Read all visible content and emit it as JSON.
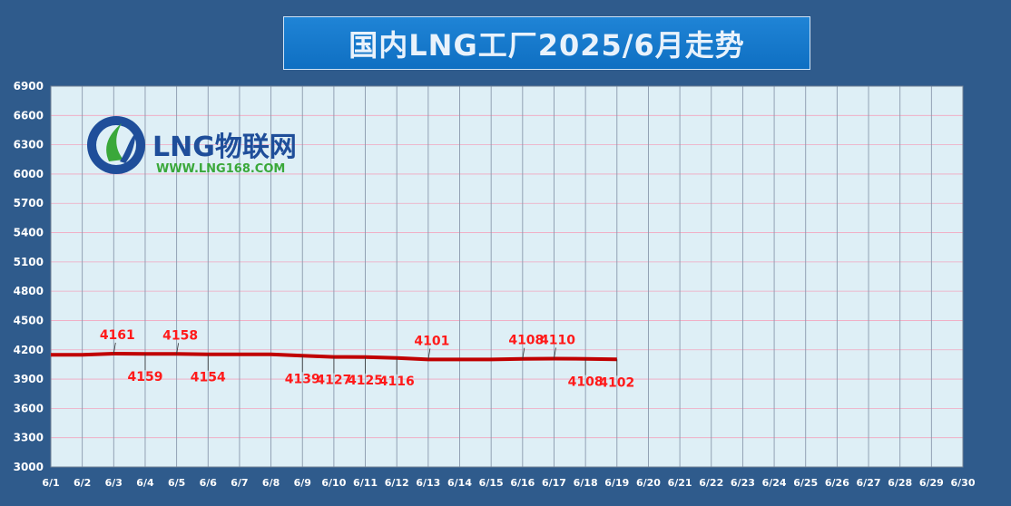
{
  "chart_data": {
    "type": "line",
    "title": "国内LNG工厂2025/6月走势",
    "categories": [
      "6/1",
      "6/2",
      "6/3",
      "6/4",
      "6/5",
      "6/6",
      "6/7",
      "6/8",
      "6/9",
      "6/10",
      "6/11",
      "6/12",
      "6/13",
      "6/14",
      "6/15",
      "6/16",
      "6/17",
      "6/18",
      "6/19",
      "6/20",
      "6/21",
      "6/22",
      "6/23",
      "6/24",
      "6/25",
      "6/26",
      "6/27",
      "6/28",
      "6/29",
      "6/30"
    ],
    "values": [
      4150,
      4150,
      4161,
      4159,
      4158,
      4154,
      4154,
      4154,
      4139,
      4127,
      4125,
      4116,
      4101,
      4101,
      4101,
      4108,
      4110,
      4108,
      4102,
      null,
      null,
      null,
      null,
      null,
      null,
      null,
      null,
      null,
      null,
      null
    ],
    "yticks": [
      3000,
      3300,
      3600,
      3900,
      4200,
      4500,
      4800,
      5100,
      5400,
      5700,
      6000,
      6300,
      6600,
      6900
    ],
    "ylim": [
      3000,
      6900
    ],
    "grid": true,
    "line_color": "#c00000",
    "label_color": "#ff1a1a",
    "plot_bg": "#deeff6",
    "data_labels": [
      {
        "index": 2,
        "text": "4161",
        "side": "above"
      },
      {
        "index": 3,
        "text": "4159",
        "side": "below"
      },
      {
        "index": 4,
        "text": "4158",
        "side": "above"
      },
      {
        "index": 5,
        "text": "4154",
        "side": "below"
      },
      {
        "index": 8,
        "text": "4139",
        "side": "below"
      },
      {
        "index": 9,
        "text": "4127",
        "side": "below"
      },
      {
        "index": 10,
        "text": "4125",
        "side": "below"
      },
      {
        "index": 11,
        "text": "4116",
        "side": "below"
      },
      {
        "index": 12,
        "text": "4101",
        "side": "above"
      },
      {
        "index": 15,
        "text": "4108",
        "side": "above"
      },
      {
        "index": 16,
        "text": "4110",
        "side": "above"
      },
      {
        "index": 17,
        "text": "4108",
        "side": "below"
      },
      {
        "index": 18,
        "text": "4102",
        "side": "below"
      }
    ]
  },
  "logo": {
    "name": "LNG物联网",
    "url": "WWW.LNG168.COM"
  }
}
